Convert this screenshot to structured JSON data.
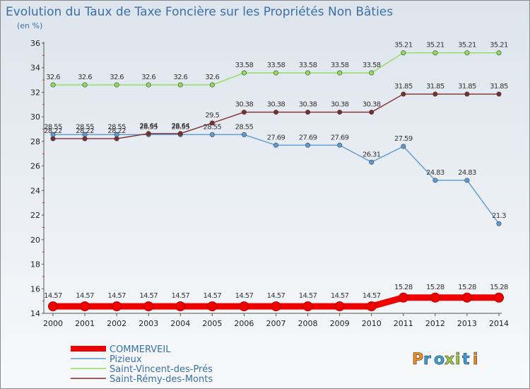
{
  "chart_data": {
    "type": "line",
    "title": "Evolution du Taux de Taxe Foncière sur les Propriétés Non Bâties",
    "subtitle": "(en %)",
    "x": [
      "2000",
      "2001",
      "2002",
      "2003",
      "2004",
      "2005",
      "2006",
      "2007",
      "2008",
      "2009",
      "2010",
      "2011",
      "2012",
      "2013",
      "2014"
    ],
    "ylim": [
      14,
      36
    ],
    "yticks": [
      14,
      16,
      18,
      20,
      22,
      24,
      26,
      28,
      30,
      32,
      34,
      36
    ],
    "grid": false,
    "legend_position": "bottom-left",
    "series": [
      {
        "name": "COMMERVEIL",
        "color": "#ee0000",
        "emphasis": "thick",
        "values": [
          14.57,
          14.57,
          14.57,
          14.57,
          14.57,
          14.57,
          14.57,
          14.57,
          14.57,
          14.57,
          14.57,
          15.28,
          15.28,
          15.28,
          15.28
        ],
        "labels": [
          "14.57",
          "14.57",
          "14.57",
          "14.57",
          "14.57",
          "14.57",
          "14.57",
          "14.57",
          "14.57",
          "14.57",
          "14.57",
          "15.28",
          "15.28",
          "15.28",
          "15.28"
        ]
      },
      {
        "name": "Pizieux",
        "color": "#5b9bd5",
        "values": [
          28.55,
          28.55,
          28.55,
          28.55,
          28.55,
          28.55,
          28.55,
          27.69,
          27.69,
          27.69,
          26.31,
          27.59,
          24.83,
          24.83,
          21.3
        ],
        "labels": [
          "28.55",
          "28.55",
          "28.55",
          "28.55",
          "28.55",
          "28.55",
          "28.55",
          "27.69",
          "27.69",
          "27.69",
          "26.31",
          "27.59",
          "24.83",
          "24.83",
          "21.3"
        ]
      },
      {
        "name": "Saint-Vincent-des-Prés",
        "color": "#8fdc5a",
        "values": [
          32.6,
          32.6,
          32.6,
          32.6,
          32.6,
          32.6,
          33.58,
          33.58,
          33.58,
          33.58,
          33.58,
          35.21,
          35.21,
          35.21,
          35.21
        ],
        "labels": [
          "32.6",
          "32.6",
          "32.6",
          "32.6",
          "32.6",
          "32.6",
          "33.58",
          "33.58",
          "33.58",
          "33.58",
          "33.58",
          "35.21",
          "35.21",
          "35.21",
          "35.21"
        ]
      },
      {
        "name": "Saint-Rémy-des-Monts",
        "color": "#7b2d2d",
        "values": [
          28.22,
          28.22,
          28.22,
          28.64,
          28.64,
          29.5,
          30.38,
          30.38,
          30.38,
          30.38,
          30.38,
          31.85,
          31.85,
          31.85,
          31.85
        ],
        "labels": [
          "28.22",
          "28.22",
          "28.22",
          "28.64",
          "28.64",
          "29.5",
          "30.38",
          "30.38",
          "30.38",
          "30.38",
          "30.38",
          "31.85",
          "31.85",
          "31.85",
          "31.85"
        ]
      }
    ]
  },
  "brand": {
    "logo_text": "Proxiti",
    "colors": [
      "#f08c1e",
      "#3aa0dc",
      "#3aa0dc",
      "#9ccc3c",
      "#9ccc3c",
      "#3aa0dc",
      "#f08c1e"
    ]
  }
}
